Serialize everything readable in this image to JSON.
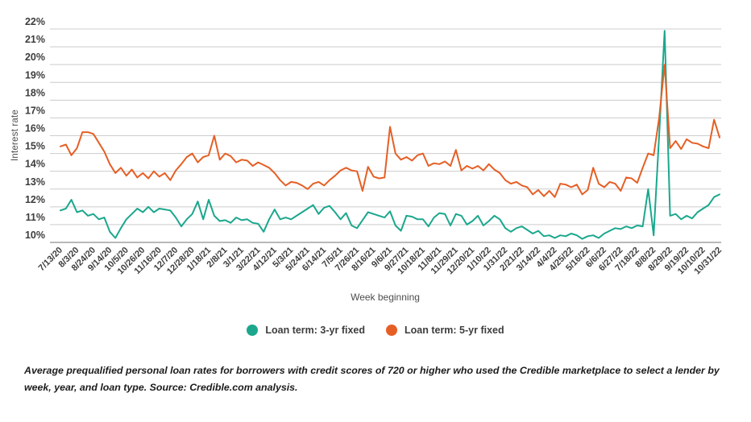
{
  "page": {
    "background": "#ffffff"
  },
  "legend": {
    "items": [
      {
        "label": "Loan term: 3-yr fixed",
        "color": "#1ba78d"
      },
      {
        "label": "Loan term: 5-yr fixed",
        "color": "#e55f25"
      }
    ]
  },
  "caption": {
    "text": "Average prequalified personal loan rates for borrowers with credit scores of 720 or higher who used the Credible marketplace to select a lender by week, year, and loan type. Source: Credible.com analysis."
  },
  "chart_data": {
    "type": "line",
    "title": "",
    "xlabel": "Week beginning",
    "ylabel": "Interest rate",
    "ylim": [
      10,
      22
    ],
    "grid": "horizontal",
    "legend_position": "bottom",
    "y_tick_labels": [
      "10%",
      "11%",
      "12%",
      "13%",
      "14%",
      "15%",
      "16%",
      "17%",
      "18%",
      "19%",
      "20%",
      "21%",
      "22%"
    ],
    "x_tick_labels": [
      "7/13/20",
      "8/3/20",
      "8/24/20",
      "9/14/20",
      "10/5/20",
      "10/26/20",
      "11/16/20",
      "12/7/20",
      "12/28/20",
      "1/18/21",
      "2/8/21",
      "3/1/21",
      "3/22/21",
      "4/12/21",
      "5/3/21",
      "5/24/21",
      "6/14/21",
      "7/5/21",
      "7/26/21",
      "8/16/21",
      "9/6/21",
      "9/27/21",
      "10/18/21",
      "11/8/21",
      "11/29/21",
      "12/20/21",
      "1/10/22",
      "1/31/22",
      "2/21/22",
      "3/14/22",
      "4/4/22",
      "4/25/22",
      "5/16/22",
      "6/6/22",
      "6/27/22",
      "7/18/22",
      "8/8/22",
      "8/29/22",
      "9/19/22",
      "10/10/22",
      "10/31/22"
    ],
    "x": [
      "7/13/20",
      "7/20/20",
      "7/27/20",
      "8/3/20",
      "8/10/20",
      "8/17/20",
      "8/24/20",
      "8/31/20",
      "9/7/20",
      "9/14/20",
      "9/21/20",
      "9/28/20",
      "10/5/20",
      "10/12/20",
      "10/19/20",
      "10/26/20",
      "11/2/20",
      "11/9/20",
      "11/16/20",
      "11/23/20",
      "11/30/20",
      "12/7/20",
      "12/14/20",
      "12/21/20",
      "12/28/20",
      "1/4/21",
      "1/11/21",
      "1/18/21",
      "1/25/21",
      "2/1/21",
      "2/8/21",
      "2/15/21",
      "2/22/21",
      "3/1/21",
      "3/8/21",
      "3/15/21",
      "3/22/21",
      "3/29/21",
      "4/5/21",
      "4/12/21",
      "4/19/21",
      "4/26/21",
      "5/3/21",
      "5/10/21",
      "5/17/21",
      "5/24/21",
      "5/31/21",
      "6/7/21",
      "6/14/21",
      "6/21/21",
      "6/28/21",
      "7/5/21",
      "7/12/21",
      "7/19/21",
      "7/26/21",
      "8/2/21",
      "8/9/21",
      "8/16/21",
      "8/23/21",
      "8/30/21",
      "9/6/21",
      "9/13/21",
      "9/20/21",
      "9/27/21",
      "10/4/21",
      "10/11/21",
      "10/18/21",
      "10/25/21",
      "11/1/21",
      "11/8/21",
      "11/15/21",
      "11/22/21",
      "11/29/21",
      "12/6/21",
      "12/13/21",
      "12/20/21",
      "12/27/21",
      "1/3/22",
      "1/10/22",
      "1/17/22",
      "1/24/22",
      "1/31/22",
      "2/7/22",
      "2/14/22",
      "2/21/22",
      "2/28/22",
      "3/7/22",
      "3/14/22",
      "3/21/22",
      "3/28/22",
      "4/4/22",
      "4/11/22",
      "4/18/22",
      "4/25/22",
      "5/2/22",
      "5/9/22",
      "5/16/22",
      "5/23/22",
      "5/30/22",
      "6/6/22",
      "6/13/22",
      "6/20/22",
      "6/27/22",
      "7/4/22",
      "7/11/22",
      "7/18/22",
      "7/25/22",
      "8/1/22",
      "8/8/22",
      "8/15/22",
      "8/22/22",
      "8/29/22",
      "9/5/22",
      "9/12/22",
      "9/19/22",
      "9/26/22",
      "10/3/22",
      "10/10/22",
      "10/17/22",
      "10/24/22",
      "10/31/22"
    ],
    "series": [
      {
        "name": "Loan term: 3-yr fixed",
        "color": "#1ba78d",
        "values": [
          11.8,
          11.9,
          12.4,
          11.7,
          11.8,
          11.5,
          11.6,
          11.3,
          11.4,
          10.6,
          10.25,
          10.8,
          11.3,
          11.6,
          11.9,
          11.7,
          12.0,
          11.7,
          11.9,
          11.85,
          11.8,
          11.4,
          10.9,
          11.3,
          11.6,
          12.3,
          11.3,
          12.4,
          11.5,
          11.2,
          11.25,
          11.1,
          11.4,
          11.25,
          11.3,
          11.1,
          11.05,
          10.6,
          11.3,
          11.85,
          11.3,
          11.4,
          11.3,
          11.5,
          11.7,
          11.9,
          12.1,
          11.6,
          11.95,
          12.05,
          11.7,
          11.3,
          11.65,
          10.95,
          10.8,
          11.25,
          11.7,
          11.6,
          11.5,
          11.4,
          11.75,
          10.95,
          10.65,
          11.5,
          11.45,
          11.3,
          11.3,
          10.9,
          11.4,
          11.65,
          11.6,
          10.95,
          11.6,
          11.5,
          11.0,
          11.2,
          11.5,
          10.95,
          11.2,
          11.5,
          11.3,
          10.8,
          10.6,
          10.8,
          10.9,
          10.7,
          10.5,
          10.65,
          10.35,
          10.4,
          10.25,
          10.4,
          10.35,
          10.5,
          10.4,
          10.2,
          10.35,
          10.4,
          10.25,
          10.5,
          10.65,
          10.8,
          10.75,
          10.9,
          10.8,
          10.95,
          10.9,
          13.0,
          10.4,
          16.0,
          21.9,
          11.5,
          11.6,
          11.3,
          11.5,
          11.35,
          11.7,
          11.9,
          12.1,
          12.55,
          12.7
        ]
      },
      {
        "name": "Loan term: 5-yr fixed",
        "color": "#e55f25",
        "values": [
          15.4,
          15.5,
          14.9,
          15.3,
          16.2,
          16.2,
          16.1,
          15.6,
          15.1,
          14.4,
          13.9,
          14.2,
          13.75,
          14.1,
          13.65,
          13.9,
          13.6,
          14.0,
          13.7,
          13.9,
          13.5,
          14.05,
          14.4,
          14.8,
          15.0,
          14.5,
          14.8,
          14.9,
          16.0,
          14.65,
          15.0,
          14.85,
          14.5,
          14.65,
          14.6,
          14.3,
          14.5,
          14.35,
          14.2,
          13.9,
          13.5,
          13.2,
          13.4,
          13.35,
          13.2,
          13.0,
          13.3,
          13.4,
          13.2,
          13.5,
          13.75,
          14.05,
          14.2,
          14.05,
          14.0,
          12.9,
          14.25,
          13.7,
          13.6,
          13.65,
          16.5,
          15.0,
          14.65,
          14.8,
          14.6,
          14.9,
          15.0,
          14.3,
          14.45,
          14.4,
          14.55,
          14.3,
          15.2,
          14.05,
          14.3,
          14.15,
          14.3,
          14.05,
          14.4,
          14.1,
          13.9,
          13.5,
          13.3,
          13.4,
          13.2,
          13.1,
          12.7,
          12.95,
          12.6,
          12.9,
          12.55,
          13.3,
          13.25,
          13.1,
          13.25,
          12.7,
          12.95,
          14.2,
          13.3,
          13.1,
          13.4,
          13.3,
          12.9,
          13.65,
          13.6,
          13.35,
          14.2,
          15.0,
          14.9,
          17.0,
          20.0,
          15.3,
          15.7,
          15.25,
          15.8,
          15.6,
          15.55,
          15.4,
          15.3,
          16.9,
          15.9
        ]
      }
    ],
    "style": {
      "grid_color": "#cccccc",
      "baseline_color": "#b9b9b9",
      "tick_label_color": "#3d3d3d",
      "axis_title_color": "#4d4d4d"
    }
  }
}
